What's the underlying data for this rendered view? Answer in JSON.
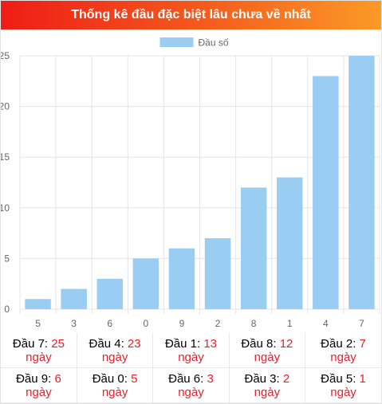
{
  "header": {
    "title": "Thống kê đầu đặc biệt lâu chưa về nhất"
  },
  "chart_data": {
    "type": "bar",
    "legend": {
      "label": "Đầu số",
      "position": "top-center"
    },
    "categories": [
      "5",
      "3",
      "6",
      "0",
      "9",
      "2",
      "8",
      "1",
      "4",
      "7"
    ],
    "series": [
      {
        "name": "Đầu số",
        "values": [
          1,
          2,
          3,
          5,
          6,
          7,
          12,
          13,
          23,
          25
        ]
      }
    ],
    "ylim": [
      0,
      25
    ],
    "yticks": [
      0,
      5,
      10,
      15,
      20,
      25
    ],
    "grid": true,
    "colors": {
      "bar": "#99cdf2",
      "grid": "#e5e5e5",
      "axis_text": "#666666"
    }
  },
  "stats": {
    "unit": "ngày",
    "rows": [
      [
        {
          "label": "Đầu 7:",
          "value": "25"
        },
        {
          "label": "Đầu 4:",
          "value": "23"
        },
        {
          "label": "Đầu 1:",
          "value": "13"
        },
        {
          "label": "Đầu 8:",
          "value": "12"
        },
        {
          "label": "Đầu 2:",
          "value": "7"
        }
      ],
      [
        {
          "label": "Đầu 9:",
          "value": "6"
        },
        {
          "label": "Đầu 0:",
          "value": "5"
        },
        {
          "label": "Đầu 6:",
          "value": "3"
        },
        {
          "label": "Đầu 3:",
          "value": "2"
        },
        {
          "label": "Đầu 5:",
          "value": "1"
        }
      ]
    ]
  }
}
